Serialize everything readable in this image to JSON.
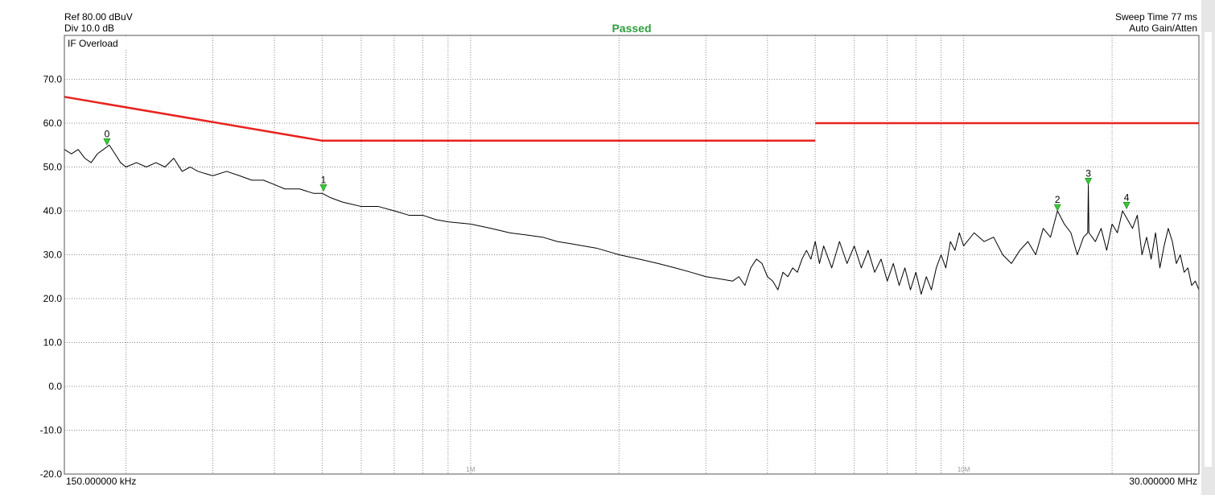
{
  "chart_data": {
    "type": "line",
    "ref_level": "Ref 80.00 dBuV",
    "division": "Div 10.0 dB",
    "status": "Passed",
    "sweep_time": "Sweep Time 77 ms",
    "gain_mode": "Auto Gain/Atten",
    "warning": "IF Overload",
    "log_x": true,
    "grid": true,
    "xlim": [
      0.15,
      30
    ],
    "ylim": [
      -20,
      80
    ],
    "xticks": [
      {
        "value": 0.15,
        "label": "150.000000 kHz"
      },
      {
        "value": 1,
        "label": "1M"
      },
      {
        "value": 10,
        "label": "10M"
      },
      {
        "value": 30,
        "label": "30.000000 MHz"
      }
    ],
    "xminor": [
      0.2,
      0.3,
      0.4,
      0.5,
      0.6,
      0.7,
      0.8,
      0.9,
      2,
      3,
      4,
      5,
      6,
      7,
      8,
      9,
      20
    ],
    "yticks": [
      {
        "value": -20,
        "label": "-20.0"
      },
      {
        "value": -10,
        "label": "-10.0"
      },
      {
        "value": 0,
        "label": "0.0"
      },
      {
        "value": 10,
        "label": "10.0"
      },
      {
        "value": 20,
        "label": "20.0"
      },
      {
        "value": 30,
        "label": "30.0"
      },
      {
        "value": 40,
        "label": "40.0"
      },
      {
        "value": 50,
        "label": "50.0"
      },
      {
        "value": 60,
        "label": "60.0"
      },
      {
        "value": 70,
        "label": "70.0"
      },
      80
    ],
    "series": [
      {
        "color": "#e8231e",
        "x": [
          0.15,
          0.5,
          5,
          5,
          5,
          30
        ],
        "values": [
          66,
          56,
          56,
          null,
          60,
          60
        ]
      },
      {
        "color": "#000000",
        "x": [
          0.15,
          0.155,
          0.16,
          0.165,
          0.17,
          0.175,
          0.18,
          0.185,
          0.19,
          0.195,
          0.2,
          0.21,
          0.22,
          0.23,
          0.24,
          0.25,
          0.26,
          0.27,
          0.28,
          0.3,
          0.32,
          0.34,
          0.36,
          0.38,
          0.4,
          0.42,
          0.45,
          0.48,
          0.5,
          0.52,
          0.55,
          0.6,
          0.65,
          0.7,
          0.75,
          0.8,
          0.85,
          0.9,
          1.0,
          1.1,
          1.2,
          1.3,
          1.4,
          1.5,
          1.6,
          1.8,
          2.0,
          2.2,
          2.4,
          2.6,
          2.8,
          3.0,
          3.2,
          3.4,
          3.5,
          3.6,
          3.7,
          3.8,
          3.9,
          4.0,
          4.1,
          4.2,
          4.3,
          4.4,
          4.5,
          4.6,
          4.7,
          4.8,
          4.9,
          5.0,
          5.1,
          5.2,
          5.4,
          5.6,
          5.8,
          6.0,
          6.2,
          6.4,
          6.6,
          6.8,
          7.0,
          7.2,
          7.4,
          7.6,
          7.8,
          8.0,
          8.2,
          8.4,
          8.6,
          8.8,
          9.0,
          9.2,
          9.4,
          9.6,
          9.8,
          10,
          10.5,
          11,
          11.5,
          12,
          12.5,
          13,
          13.5,
          14,
          14.5,
          15,
          15.5,
          16,
          16.5,
          17,
          17.5,
          17.85,
          17.9,
          17.95,
          18.5,
          19,
          19.5,
          20,
          20.5,
          21,
          21.5,
          22,
          22.5,
          23,
          23.5,
          24,
          24.5,
          25,
          25.5,
          26,
          26.5,
          27,
          27.5,
          28,
          28.5,
          29,
          29.5,
          30
        ],
        "values": [
          54,
          53,
          54,
          52,
          51,
          53,
          54,
          55,
          53,
          51,
          50,
          51,
          50,
          51,
          50,
          52,
          49,
          50,
          49,
          48,
          49,
          48,
          47,
          47,
          46,
          45,
          45,
          44,
          44,
          43,
          42,
          41,
          41,
          40,
          39,
          39,
          38,
          37.5,
          37,
          36,
          35,
          34.5,
          34,
          33,
          32.5,
          31.5,
          30,
          29,
          28,
          27,
          26,
          25,
          24.5,
          24,
          25,
          23,
          27,
          29,
          28,
          25,
          24,
          22,
          26,
          25,
          27,
          26,
          29,
          31,
          29,
          33,
          28,
          32,
          27,
          33,
          28,
          32,
          27,
          31,
          26,
          29,
          24,
          28,
          23,
          27,
          22,
          26,
          21,
          25,
          22,
          27,
          30,
          27,
          33,
          31,
          35,
          32,
          35,
          33,
          34,
          30,
          28,
          31,
          33,
          30,
          36,
          34,
          40,
          37,
          35,
          30,
          34,
          35,
          46,
          35,
          33,
          36,
          31,
          37,
          35,
          40,
          38,
          36,
          39,
          30,
          34,
          29,
          35,
          27,
          32,
          36,
          33,
          28,
          30,
          26,
          27,
          23,
          24,
          22
        ]
      }
    ],
    "markers": [
      {
        "label": "0",
        "x": 0.183,
        "value": 55
      },
      {
        "label": "1",
        "x": 0.503,
        "value": 44.5
      },
      {
        "label": "2",
        "x": 15.5,
        "value": 40
      },
      {
        "label": "3",
        "x": 17.9,
        "value": 46
      },
      {
        "label": "4",
        "x": 21.4,
        "value": 40.5
      }
    ]
  }
}
